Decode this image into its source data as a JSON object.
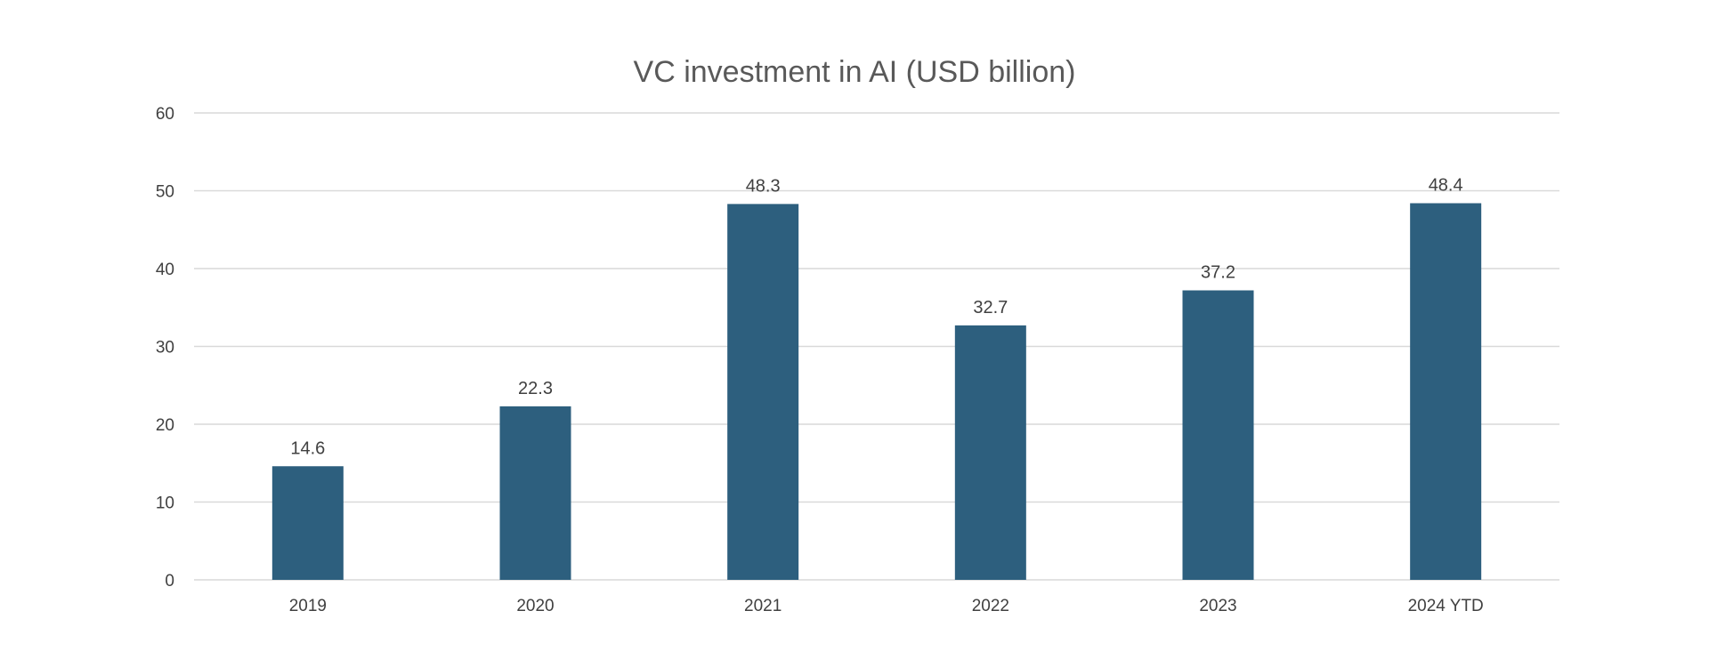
{
  "chart_data": {
    "type": "bar",
    "title": "VC investment in AI (USD billion)",
    "xlabel": "",
    "ylabel": "",
    "categories": [
      "2019",
      "2020",
      "2021",
      "2022",
      "2023",
      "2024 YTD"
    ],
    "values": [
      14.6,
      22.3,
      48.3,
      32.7,
      37.2,
      48.4
    ],
    "value_labels": [
      "14.6",
      "22.3",
      "48.3",
      "32.7",
      "37.2",
      "48.4"
    ],
    "ylim": [
      0,
      60
    ],
    "yticks": [
      "0",
      "10",
      "20",
      "30",
      "40",
      "50",
      "60"
    ],
    "grid": true,
    "legend": "none",
    "colors": {
      "bar": "#2d5f7e",
      "grid": "#d9d9d9",
      "text": "#404040",
      "title": "#595959"
    }
  }
}
